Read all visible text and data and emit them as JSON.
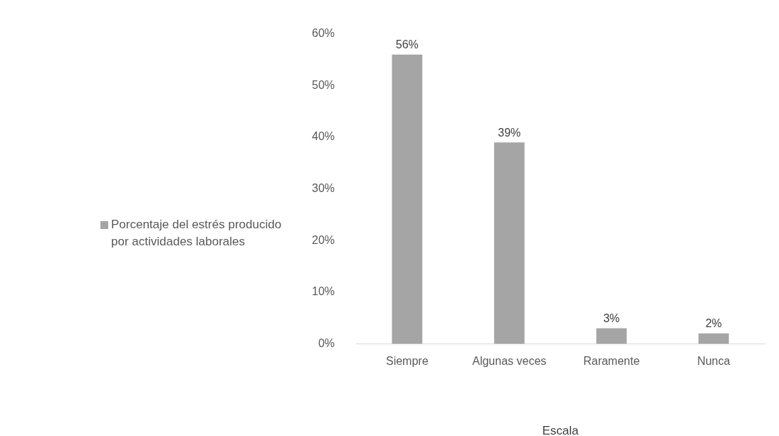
{
  "chart_data": {
    "type": "bar",
    "xlabel": "Escala",
    "categories": [
      "Siempre",
      "Algunas veces",
      "Raramente",
      "Nunca"
    ],
    "series": [
      {
        "name": "Porcentaje del estrés producido por actividades laborales",
        "color": "#a5a5a5",
        "values": [
          56,
          39,
          3,
          2
        ],
        "value_labels": [
          "56%",
          "39%",
          "3%",
          "2%"
        ]
      }
    ],
    "ylim": [
      0,
      60
    ],
    "yticks": [
      {
        "value": 0,
        "label": "0%"
      },
      {
        "value": 10,
        "label": "10%"
      },
      {
        "value": 20,
        "label": "20%"
      },
      {
        "value": 30,
        "label": "30%"
      },
      {
        "value": 40,
        "label": "40%"
      },
      {
        "value": 50,
        "label": "50%"
      },
      {
        "value": 60,
        "label": "60%"
      }
    ],
    "grid": false,
    "legend": "left"
  }
}
